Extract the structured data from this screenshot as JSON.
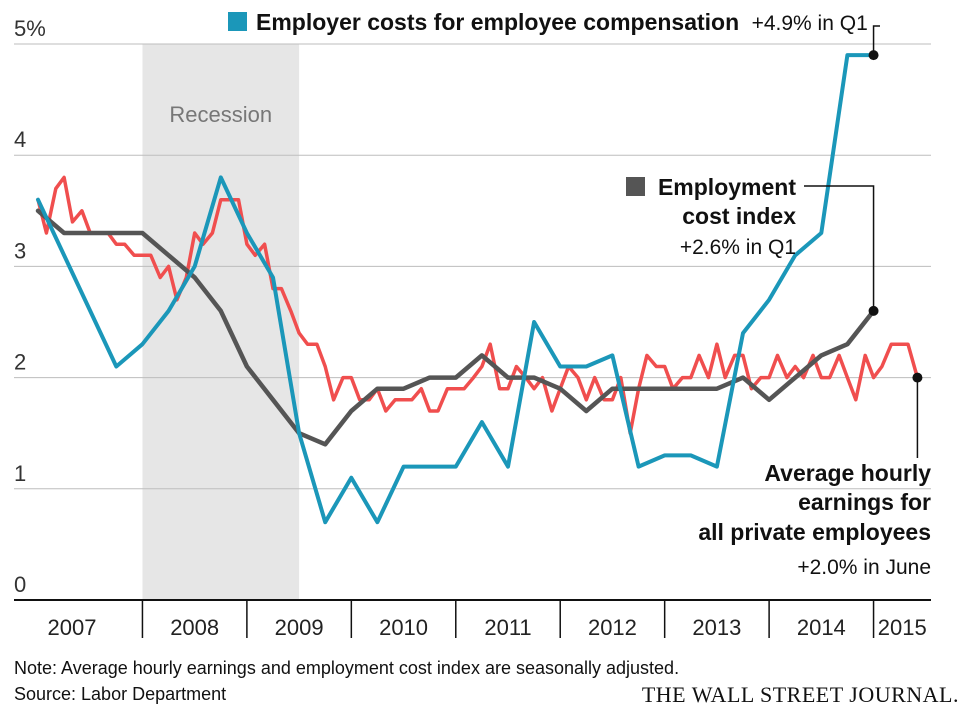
{
  "chart_data": {
    "type": "line",
    "ylim": [
      0,
      5
    ],
    "xlim": [
      2007.0,
      2015.55
    ],
    "y_ticks": [
      {
        "value": 5,
        "label": "5%"
      },
      {
        "value": 4,
        "label": "4"
      },
      {
        "value": 3,
        "label": "3"
      },
      {
        "value": 2,
        "label": "2"
      },
      {
        "value": 1,
        "label": "1"
      },
      {
        "value": 0,
        "label": "0"
      }
    ],
    "x_ticks": [
      "2007",
      "2008",
      "2009",
      "2010",
      "2011",
      "2012",
      "2013",
      "2014",
      "2015"
    ],
    "grid": true,
    "recession": {
      "start": 2008.0,
      "end": 2009.5,
      "label": "Recession"
    },
    "series": [
      {
        "key": "employer_costs",
        "name": "Employer costs for employee compensation",
        "color": "#1b97b9",
        "points": [
          [
            2007.0,
            3.6
          ],
          [
            2007.5,
            2.6
          ],
          [
            2007.75,
            2.1
          ],
          [
            2008.0,
            2.3
          ],
          [
            2008.25,
            2.6
          ],
          [
            2008.5,
            3.0
          ],
          [
            2008.75,
            3.8
          ],
          [
            2009.0,
            3.3
          ],
          [
            2009.25,
            2.9
          ],
          [
            2009.5,
            1.5
          ],
          [
            2009.75,
            0.7
          ],
          [
            2010.0,
            1.1
          ],
          [
            2010.25,
            0.7
          ],
          [
            2010.5,
            1.2
          ],
          [
            2010.75,
            1.2
          ],
          [
            2011.0,
            1.2
          ],
          [
            2011.25,
            1.6
          ],
          [
            2011.5,
            1.2
          ],
          [
            2011.75,
            2.5
          ],
          [
            2012.0,
            2.1
          ],
          [
            2012.25,
            2.1
          ],
          [
            2012.5,
            2.2
          ],
          [
            2012.75,
            1.2
          ],
          [
            2013.0,
            1.3
          ],
          [
            2013.25,
            1.3
          ],
          [
            2013.5,
            1.2
          ],
          [
            2013.75,
            2.4
          ],
          [
            2014.0,
            2.7
          ],
          [
            2014.25,
            3.1
          ],
          [
            2014.5,
            3.3
          ],
          [
            2014.75,
            4.9
          ],
          [
            2015.0,
            4.9
          ]
        ],
        "latest_label": "+4.9% in Q1"
      },
      {
        "key": "eci",
        "name": "Employment cost index",
        "color": "#555555",
        "points": [
          [
            2007.0,
            3.5
          ],
          [
            2007.25,
            3.3
          ],
          [
            2007.5,
            3.3
          ],
          [
            2007.75,
            3.3
          ],
          [
            2008.0,
            3.3
          ],
          [
            2008.25,
            3.1
          ],
          [
            2008.5,
            2.9
          ],
          [
            2008.75,
            2.6
          ],
          [
            2009.0,
            2.1
          ],
          [
            2009.25,
            1.8
          ],
          [
            2009.5,
            1.5
          ],
          [
            2009.75,
            1.4
          ],
          [
            2010.0,
            1.7
          ],
          [
            2010.25,
            1.9
          ],
          [
            2010.5,
            1.9
          ],
          [
            2010.75,
            2.0
          ],
          [
            2011.0,
            2.0
          ],
          [
            2011.25,
            2.2
          ],
          [
            2011.5,
            2.0
          ],
          [
            2011.75,
            2.0
          ],
          [
            2012.0,
            1.9
          ],
          [
            2012.25,
            1.7
          ],
          [
            2012.5,
            1.9
          ],
          [
            2012.75,
            1.9
          ],
          [
            2013.0,
            1.9
          ],
          [
            2013.25,
            1.9
          ],
          [
            2013.5,
            1.9
          ],
          [
            2013.75,
            2.0
          ],
          [
            2014.0,
            1.8
          ],
          [
            2014.25,
            2.0
          ],
          [
            2014.5,
            2.2
          ],
          [
            2014.75,
            2.3
          ],
          [
            2015.0,
            2.6
          ]
        ],
        "latest_label": "+2.6% in Q1"
      },
      {
        "key": "ahe",
        "name": "Average hourly earnings for all private employees",
        "color": "#f04e4e",
        "points": [
          [
            2007.0,
            3.6
          ],
          [
            2007.08,
            3.3
          ],
          [
            2007.17,
            3.7
          ],
          [
            2007.25,
            3.8
          ],
          [
            2007.33,
            3.4
          ],
          [
            2007.42,
            3.5
          ],
          [
            2007.5,
            3.3
          ],
          [
            2007.58,
            3.3
          ],
          [
            2007.67,
            3.3
          ],
          [
            2007.75,
            3.2
          ],
          [
            2007.83,
            3.2
          ],
          [
            2007.92,
            3.1
          ],
          [
            2008.0,
            3.1
          ],
          [
            2008.08,
            3.1
          ],
          [
            2008.17,
            2.9
          ],
          [
            2008.25,
            3.0
          ],
          [
            2008.33,
            2.7
          ],
          [
            2008.42,
            2.9
          ],
          [
            2008.5,
            3.3
          ],
          [
            2008.58,
            3.2
          ],
          [
            2008.67,
            3.3
          ],
          [
            2008.75,
            3.6
          ],
          [
            2008.83,
            3.6
          ],
          [
            2008.92,
            3.6
          ],
          [
            2009.0,
            3.2
          ],
          [
            2009.08,
            3.1
          ],
          [
            2009.17,
            3.2
          ],
          [
            2009.25,
            2.8
          ],
          [
            2009.33,
            2.8
          ],
          [
            2009.42,
            2.6
          ],
          [
            2009.5,
            2.4
          ],
          [
            2009.58,
            2.3
          ],
          [
            2009.67,
            2.3
          ],
          [
            2009.75,
            2.1
          ],
          [
            2009.83,
            1.8
          ],
          [
            2009.92,
            2.0
          ],
          [
            2010.0,
            2.0
          ],
          [
            2010.08,
            1.8
          ],
          [
            2010.17,
            1.8
          ],
          [
            2010.25,
            1.9
          ],
          [
            2010.33,
            1.7
          ],
          [
            2010.42,
            1.8
          ],
          [
            2010.5,
            1.8
          ],
          [
            2010.58,
            1.8
          ],
          [
            2010.67,
            1.9
          ],
          [
            2010.75,
            1.7
          ],
          [
            2010.83,
            1.7
          ],
          [
            2010.92,
            1.9
          ],
          [
            2011.0,
            1.9
          ],
          [
            2011.08,
            1.9
          ],
          [
            2011.17,
            2.0
          ],
          [
            2011.25,
            2.1
          ],
          [
            2011.33,
            2.3
          ],
          [
            2011.42,
            1.9
          ],
          [
            2011.5,
            1.9
          ],
          [
            2011.58,
            2.1
          ],
          [
            2011.67,
            2.0
          ],
          [
            2011.75,
            1.9
          ],
          [
            2011.83,
            2.0
          ],
          [
            2011.92,
            1.7
          ],
          [
            2012.0,
            1.9
          ],
          [
            2012.08,
            2.1
          ],
          [
            2012.17,
            2.0
          ],
          [
            2012.25,
            1.8
          ],
          [
            2012.33,
            2.0
          ],
          [
            2012.42,
            1.8
          ],
          [
            2012.5,
            1.8
          ],
          [
            2012.58,
            2.0
          ],
          [
            2012.67,
            1.5
          ],
          [
            2012.75,
            1.9
          ],
          [
            2012.83,
            2.2
          ],
          [
            2012.92,
            2.1
          ],
          [
            2013.0,
            2.1
          ],
          [
            2013.08,
            1.9
          ],
          [
            2013.17,
            2.0
          ],
          [
            2013.25,
            2.0
          ],
          [
            2013.33,
            2.2
          ],
          [
            2013.42,
            2.0
          ],
          [
            2013.5,
            2.3
          ],
          [
            2013.58,
            2.0
          ],
          [
            2013.67,
            2.2
          ],
          [
            2013.75,
            2.2
          ],
          [
            2013.83,
            1.9
          ],
          [
            2013.92,
            2.0
          ],
          [
            2014.0,
            2.0
          ],
          [
            2014.08,
            2.2
          ],
          [
            2014.17,
            2.0
          ],
          [
            2014.25,
            2.1
          ],
          [
            2014.33,
            2.0
          ],
          [
            2014.42,
            2.2
          ],
          [
            2014.5,
            2.0
          ],
          [
            2014.58,
            2.0
          ],
          [
            2014.67,
            2.2
          ],
          [
            2014.75,
            2.0
          ],
          [
            2014.83,
            1.8
          ],
          [
            2014.92,
            2.2
          ],
          [
            2015.0,
            2.0
          ],
          [
            2015.08,
            2.1
          ],
          [
            2015.17,
            2.3
          ],
          [
            2015.25,
            2.3
          ],
          [
            2015.33,
            2.3
          ],
          [
            2015.42,
            2.0
          ]
        ],
        "latest_label": "+2.0% in June"
      }
    ]
  },
  "annotations": {
    "employer_costs": {
      "title": "Employer costs for employee compensation",
      "value": "+4.9% in Q1"
    },
    "eci": {
      "title_line1": "Employment",
      "title_line2": "cost index",
      "value": "+2.6% in Q1"
    },
    "ahe": {
      "title_line1": "Average hourly",
      "title_line2": "earnings for",
      "title_line3": "all private employees",
      "value": "+2.0% in June"
    }
  },
  "footer": {
    "note": "Note: Average hourly earnings and employment cost index are seasonally adjusted.",
    "source": "Source: Labor Department",
    "publisher": "THE WALL STREET JOURNAL."
  }
}
